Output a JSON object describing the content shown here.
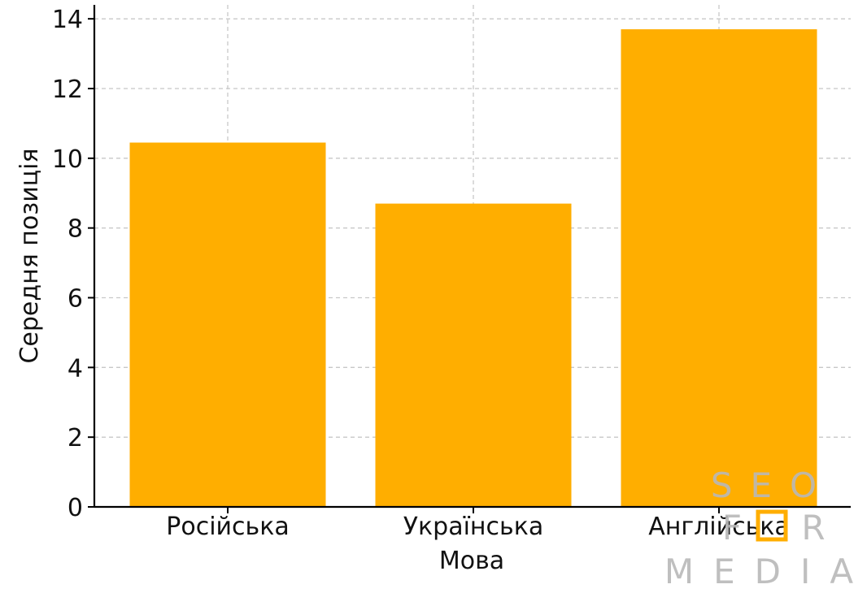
{
  "chart_data": {
    "type": "bar",
    "categories": [
      "Російська",
      "Українська",
      "Англійська"
    ],
    "values": [
      10.45,
      8.7,
      13.7
    ],
    "title": "",
    "xlabel": "Мова",
    "ylabel": "Середня позиція",
    "ylim": [
      0,
      14.4
    ],
    "yticks": [
      0,
      2,
      4,
      6,
      8,
      10,
      12,
      14
    ],
    "grid": true,
    "bar_color": "#ffae00"
  },
  "watermark": {
    "line1": "SEO",
    "line2_left": "F",
    "line2_right": "R",
    "line3": "MEDIA",
    "color": "#b8b8b8",
    "accent_color": "#ffae00"
  }
}
